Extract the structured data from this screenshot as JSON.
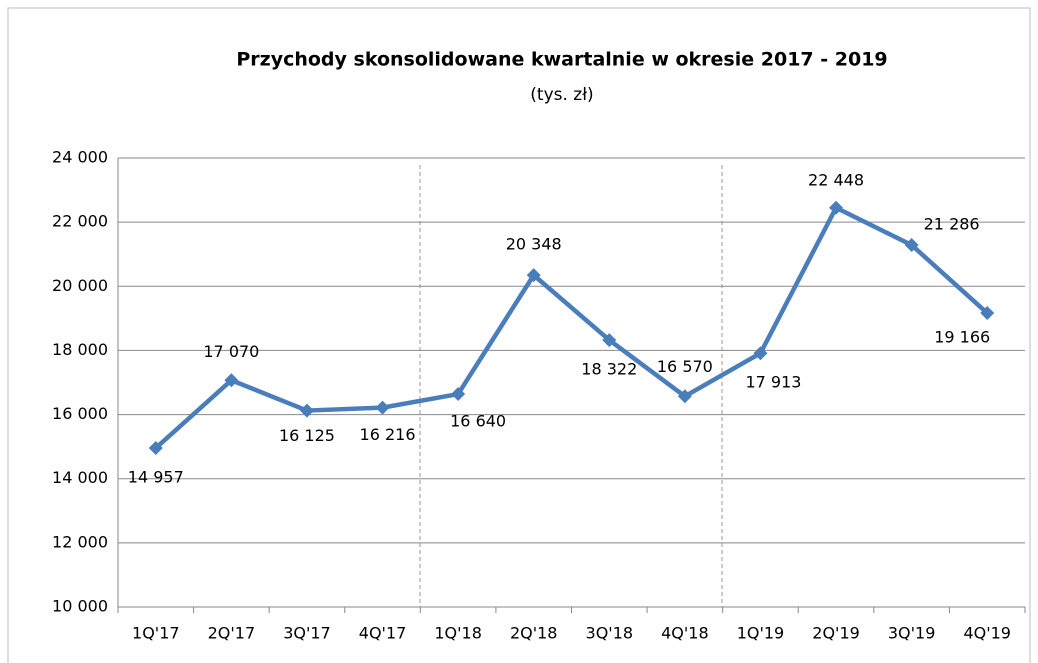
{
  "chart_data": {
    "type": "line",
    "title": "Przychody skonsolidowane kwartalnie w okresie 2017 - 2019",
    "subtitle": "(tys. zł)",
    "categories": [
      "1Q'17",
      "2Q'17",
      "3Q'17",
      "4Q'17",
      "1Q'18",
      "2Q'18",
      "3Q'18",
      "4Q'18",
      "1Q'19",
      "2Q'19",
      "3Q'19",
      "4Q'19"
    ],
    "series": [
      {
        "name": "Przychody",
        "color": "#4a7ebb",
        "values": [
          14957,
          17070,
          16125,
          16216,
          16640,
          20348,
          18322,
          16570,
          17913,
          22448,
          21286,
          19166
        ],
        "value_labels": [
          "14 957",
          "17 070",
          "16 125",
          "16 216",
          "16 640",
          "20 348",
          "18 322",
          "16 570",
          "17 913",
          "22 448",
          "21 286",
          "19 166"
        ]
      }
    ],
    "ylim": [
      10000,
      24000
    ],
    "yticks": [
      {
        "value": 10000,
        "label": "10 000"
      },
      {
        "value": 12000,
        "label": "12 000"
      },
      {
        "value": 14000,
        "label": "14 000"
      },
      {
        "value": 16000,
        "label": "16 000"
      },
      {
        "value": 18000,
        "label": "18 000"
      },
      {
        "value": 20000,
        "label": "20 000"
      },
      {
        "value": 22000,
        "label": "22 000"
      },
      {
        "value": 24000,
        "label": "24 000"
      }
    ],
    "grid": true
  }
}
